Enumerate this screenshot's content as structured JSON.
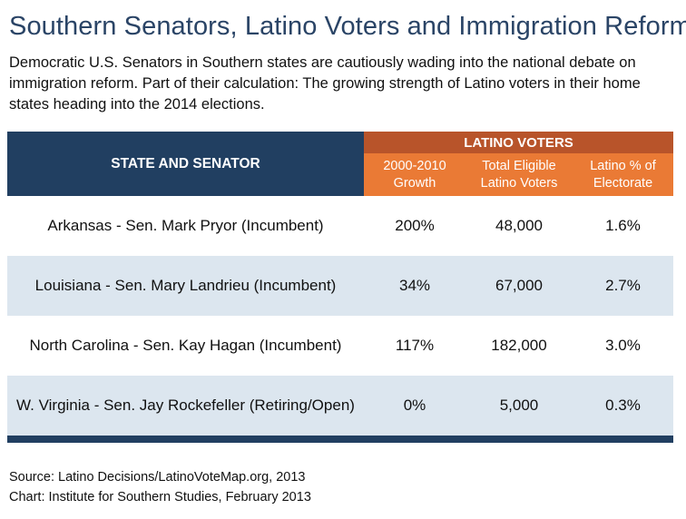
{
  "title": "Southern Senators, Latino Voters and Immigration Reform",
  "intro": "Democratic U.S. Senators in Southern states are cautiously wading into the national debate on immigration reform. Part of their calculation: The growing strength of Latino voters in their home states heading into the 2014 elections.",
  "table": {
    "state_header": "STATE AND SENATOR",
    "group_header": "LATINO VOTERS",
    "columns": [
      "2000-2010 Growth",
      "Total Eligible Latino Voters",
      "Latino % of Electorate"
    ],
    "rows": [
      {
        "state": "Arkansas - Sen. Mark Pryor (Incumbent)",
        "growth": "200%",
        "eligible": "48,000",
        "pct": "1.6%"
      },
      {
        "state": "Louisiana - Sen. Mary Landrieu (Incumbent)",
        "growth": "34%",
        "eligible": "67,000",
        "pct": "2.7%"
      },
      {
        "state": "North Carolina - Sen. Kay Hagan (Incumbent)",
        "growth": "117%",
        "eligible": "182,000",
        "pct": "3.0%"
      },
      {
        "state": "W. Virginia - Sen. Jay Rockefeller (Retiring/Open)",
        "growth": "0%",
        "eligible": "5,000",
        "pct": "0.3%"
      }
    ]
  },
  "source": "Source: Latino Decisions/LatinoVoteMap.org, 2013",
  "credit": "Chart: Institute for Southern Studies, February 2013",
  "colors": {
    "navy": "#213f61",
    "orange": "#ea7a35",
    "dark_orange": "#b8542a",
    "row_alt": "#dce6ef"
  }
}
